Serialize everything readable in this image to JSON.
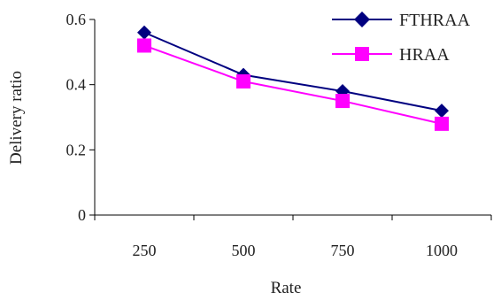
{
  "chart_data": {
    "type": "line",
    "title": "",
    "xlabel": "Rate",
    "ylabel": "Delivery ratio",
    "categories": [
      "250",
      "500",
      "750",
      "1000"
    ],
    "ylim": [
      0,
      0.6
    ],
    "yticks": [
      "0",
      "0.2",
      "0.4",
      "0.6"
    ],
    "grid": false,
    "legend_position": "top-right",
    "series": [
      {
        "name": "FTHRAA",
        "values": [
          0.56,
          0.43,
          0.38,
          0.32
        ],
        "color": "#000080",
        "marker": "diamond"
      },
      {
        "name": "HRAA",
        "values": [
          0.52,
          0.41,
          0.35,
          0.28
        ],
        "color": "#ff00ff",
        "marker": "square"
      }
    ]
  }
}
